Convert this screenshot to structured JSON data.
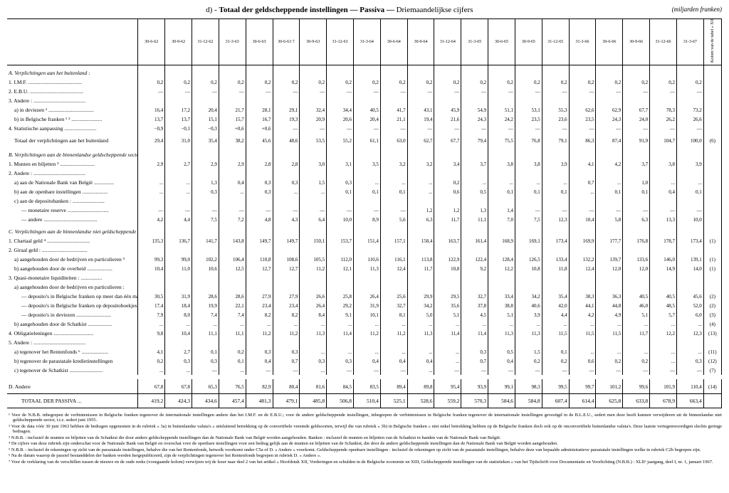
{
  "header": {
    "section_letter": "d)",
    "title_main": "Totaal der geldscheppende instellingen — Passiva —",
    "title_sub": "Driemaandelijkse cijfers",
    "unit": "(miljarden franken)"
  },
  "columns": [
    "30-6-62",
    "30-9-62",
    "31-12-62",
    "31-3-63",
    "30-6-63",
    "30-6-63 †",
    "30-9-63",
    "31-12-63",
    "31-3-64",
    "30-6-64",
    "30-9-64",
    "31-12-64",
    "31-3-65",
    "30-6-65",
    "30-9-65",
    "31-12-65",
    "31-3-66",
    "30-6-66",
    "30-9-66",
    "31-12-66",
    "31-3-67"
  ],
  "side_note": "Kolom van de tabel « XIII. d» geldschepp. instell. » waarin de rubriek begrepen is",
  "rows": [
    {
      "type": "section",
      "label": "A. Verplichtingen aan het buitenland :"
    },
    {
      "label": "1. I.M.F.",
      "indent": 0,
      "vals": [
        "0,2",
        "0,2",
        "0,2",
        "0,2",
        "0,2",
        "0,2",
        "0,2",
        "0,2",
        "0,2",
        "0,2",
        "0,2",
        "0,2",
        "0,2",
        "0,2",
        "0,2",
        "0,2",
        "0,2",
        "0,2",
        "0,2",
        "0,2",
        "0,2"
      ],
      "note": ""
    },
    {
      "label": "2. E.B.U.",
      "indent": 0,
      "vals": [
        "—",
        "—",
        "—",
        "—",
        "—",
        "—",
        "—",
        "—",
        "—",
        "—",
        "—",
        "—",
        "—",
        "—",
        "—",
        "—",
        "—",
        "—",
        "—",
        "—",
        "—"
      ],
      "note": ""
    },
    {
      "label": "3. Andere :",
      "indent": 0,
      "vals": [
        "",
        "",
        "",
        "",
        "",
        "",
        "",
        "",
        "",
        "",
        "",
        "",
        "",
        "",
        "",
        "",
        "",
        "",
        "",
        "",
        ""
      ],
      "note": ""
    },
    {
      "label": "a) in deviezen ²",
      "indent": 1,
      "vals": [
        "16,4",
        "17,2",
        "20,4",
        "21,7",
        "28,1",
        "29,1",
        "32,4",
        "34,4",
        "40,5",
        "41,7",
        "43,1",
        "45,9",
        "54,9",
        "51,1",
        "53,1",
        "55,3",
        "62,6",
        "62,9",
        "67,7",
        "78,3",
        "73,2"
      ],
      "note": ""
    },
    {
      "label": "b) in Belgische franken ¹ ²",
      "indent": 1,
      "vals": [
        "13,7",
        "13,7",
        "15,1",
        "15,7",
        "16,7",
        "19,3",
        "20,9",
        "20,6",
        "20,4",
        "21,1",
        "19,4",
        "21,6",
        "24,3",
        "24,2",
        "23,5",
        "23,6",
        "23,5",
        "24,3",
        "24,0",
        "26,2",
        "26,6"
      ],
      "note": ""
    },
    {
      "label": "4. Statistische aanpassing",
      "indent": 0,
      "vals": [
        "−0,9",
        "−0,1",
        "−0,3",
        "+0,6",
        "+0,6",
        "—",
        "—",
        "—",
        "—",
        "—",
        "—",
        "—",
        "—",
        "—",
        "—",
        "—",
        "—",
        "—",
        "—",
        "—",
        "—"
      ],
      "note": ""
    },
    {
      "label": "Totaal der verplichtingen aan het buitenland",
      "indent": 1,
      "vals": [
        "29,4",
        "31,0",
        "35,4",
        "38,2",
        "45,6",
        "48,6",
        "53,5",
        "55,2",
        "61,1",
        "63,0",
        "62,7",
        "67,7",
        "79,4",
        "75,5",
        "76,8",
        "79,1",
        "86,3",
        "87,4",
        "91,9",
        "104,7",
        "100,0"
      ],
      "note": "(6)",
      "class": "total-row"
    },
    {
      "type": "section",
      "label": "B. Verplichtingen aan de binnenlandse geldscheppende sector :"
    },
    {
      "label": "1. Munten en biljetten ³",
      "indent": 0,
      "vals": [
        "2,9",
        "2,7",
        "2,9",
        "2,9",
        "2,8",
        "2,8",
        "3,0",
        "3,1",
        "3,5",
        "3,2",
        "3,2",
        "3,4",
        "3,7",
        "3,8",
        "3,8",
        "3,9",
        "4,1",
        "4,2",
        "3,7",
        "3,8",
        "3,9"
      ],
      "note": ""
    },
    {
      "label": "2. Andere :",
      "indent": 0,
      "vals": [
        "",
        "",
        "",
        "",
        "",
        "",
        "",
        "",
        "",
        "",
        "",
        "",
        "",
        "",
        "",
        "",
        "",
        "",
        "",
        "",
        ""
      ],
      "note": ""
    },
    {
      "label": "a) aan de Nationale Bank van België",
      "indent": 1,
      "vals": [
        "...",
        "...",
        "1,3",
        "0,4",
        "0,3",
        "0,3",
        "1,5",
        "0,3",
        "...",
        "...",
        "...",
        "0,2",
        "...",
        "...",
        "...",
        "...",
        "0,7",
        "...",
        "1,0",
        "...",
        "..."
      ],
      "note": ""
    },
    {
      "label": "b) aan de openbare instellingen",
      "indent": 1,
      "vals": [
        "...",
        "...",
        "0,3",
        "...",
        "0,3",
        "...",
        "...",
        "0,1",
        "0,1",
        "0,1",
        "...",
        "0,6",
        "0,5",
        "0,1",
        "0,1",
        "0,1",
        "...",
        "0,1",
        "0,1",
        "0,4",
        "0,1"
      ],
      "note": ""
    },
    {
      "label": "c) aan de depositobanken :",
      "indent": 1,
      "vals": [
        "",
        "",
        "",
        "",
        "",
        "",
        "",
        "",
        "",
        "",
        "",
        "",
        "",
        "",
        "",
        "",
        "",
        "",
        "",
        "",
        ""
      ],
      "note": ""
    },
    {
      "label": "— monetaire reserve",
      "indent": 2,
      "vals": [
        "—",
        "—",
        "—",
        "—",
        "—",
        "—",
        "—",
        "—",
        "—",
        "—",
        "1,2",
        "1,2",
        "1,3",
        "1,4",
        "—",
        "—",
        "—",
        "—",
        "—",
        "—",
        "—"
      ],
      "note": ""
    },
    {
      "label": "— andere",
      "indent": 2,
      "vals": [
        "4,2",
        "4,4",
        "7,5",
        "7,2",
        "4,8",
        "4,3",
        "6,4",
        "10,0",
        "8,9",
        "5,6",
        "6,3",
        "11,7",
        "11,1",
        "7,0",
        "7,5",
        "12,3",
        "10,4",
        "5,8",
        "6,3",
        "13,3",
        "10,0"
      ],
      "note": ""
    },
    {
      "type": "section",
      "label": "C. Verplichtingen aan de binnenlandse niet geldscheppende sector :"
    },
    {
      "label": "1. Chartaal geld ⁴",
      "indent": 0,
      "vals": [
        "135,3",
        "136,7",
        "141,7",
        "143,8",
        "149,7",
        "149,7",
        "150,1",
        "153,7",
        "151,4",
        "157,1",
        "158,4",
        "163,7",
        "161,4",
        "168,9",
        "169,1",
        "173,4",
        "169,9",
        "177,7",
        "176,8",
        "178,7",
        "173,4"
      ],
      "note": "(1)"
    },
    {
      "label": "2. Giraal geld :",
      "indent": 0,
      "vals": [
        "",
        "",
        "",
        "",
        "",
        "",
        "",
        "",
        "",
        "",
        "",
        "",
        "",
        "",
        "",
        "",
        "",
        "",
        "",
        "",
        ""
      ],
      "note": ""
    },
    {
      "label": "a) aangehouden door de bedrijven en particulieren ⁵",
      "indent": 1,
      "vals": [
        "99,3",
        "99,0",
        "102,2",
        "106,4",
        "110,8",
        "108,6",
        "105,5",
        "112,0",
        "110,6",
        "116,1",
        "113,8",
        "122,9",
        "122,4",
        "128,4",
        "126,5",
        "133,4",
        "132,2",
        "139,7",
        "133,6",
        "146,0",
        "139,1"
      ],
      "note": "(1)"
    },
    {
      "label": "b) aangehouden door de overheid",
      "indent": 1,
      "vals": [
        "10,4",
        "11,0",
        "10,6",
        "12,5",
        "12,7",
        "12,7",
        "11,2",
        "12,1",
        "11,3",
        "12,4",
        "11,7",
        "10,8",
        "9,2",
        "12,2",
        "10,8",
        "11,8",
        "12,4",
        "12,0",
        "12,0",
        "14,9",
        "14,0"
      ],
      "note": "(1)"
    },
    {
      "label": "3. Quasi-monetaire liquiditeiten :",
      "indent": 0,
      "vals": [
        "",
        "",
        "",
        "",
        "",
        "",
        "",
        "",
        "",
        "",
        "",
        "",
        "",
        "",
        "",
        "",
        "",
        "",
        "",
        "",
        ""
      ],
      "note": ""
    },
    {
      "label": "a) aangehouden door de bedrijven en particulieren :",
      "indent": 1,
      "vals": [
        "",
        "",
        "",
        "",
        "",
        "",
        "",
        "",
        "",
        "",
        "",
        "",
        "",
        "",
        "",
        "",
        "",
        "",
        "",
        "",
        ""
      ],
      "note": ""
    },
    {
      "label": "— deposito's in Belgische franken op meer dan één maand",
      "indent": 2,
      "vals": [
        "30,5",
        "31,9",
        "28,6",
        "28,6",
        "27,9",
        "27,9",
        "26,6",
        "25,8",
        "26,4",
        "25,6",
        "29,9",
        "29,5",
        "32,7",
        "33,4",
        "34,2",
        "35,4",
        "38,3",
        "36,3",
        "40,5",
        "40,5",
        "45,6"
      ],
      "note": "(2)"
    },
    {
      "label": "— deposito's in Belgische franken op depositoboekjes",
      "indent": 2,
      "vals": [
        "17,4",
        "18,4",
        "19,9",
        "22,1",
        "23,4",
        "23,4",
        "26,4",
        "29,2",
        "31,9",
        "32,7",
        "34,2",
        "35,6",
        "37,8",
        "38,8",
        "40,6",
        "42,0",
        "44,1",
        "44,8",
        "46,0",
        "48,5",
        "52,0"
      ],
      "note": "(2)"
    },
    {
      "label": "— deposito's in deviezen",
      "indent": 2,
      "vals": [
        "7,9",
        "8,0",
        "7,4",
        "7,4",
        "8,2",
        "8,2",
        "8,4",
        "9,1",
        "10,1",
        "8,1",
        "5,0",
        "5,1",
        "4,5",
        "5,1",
        "3,9",
        "4,4",
        "4,2",
        "4,9",
        "5,1",
        "5,7",
        "6,0"
      ],
      "note": "(3)"
    },
    {
      "label": "b) aangehouden door de Schatkist",
      "indent": 1,
      "vals": [
        "...",
        "...",
        "...",
        "...",
        "...",
        "...",
        "...",
        "...",
        "...",
        "...",
        "...",
        "...",
        "...",
        "...",
        "...",
        "...",
        "...",
        "...",
        "...",
        "...",
        "..."
      ],
      "note": "(4)"
    },
    {
      "label": "4. Obligatieleningen",
      "indent": 0,
      "vals": [
        "9,8",
        "10,4",
        "11,1",
        "11,1",
        "11,2",
        "11,2",
        "11,3",
        "11,4",
        "11,2",
        "11,2",
        "11,3",
        "11,4",
        "11,4",
        "11,3",
        "11,3",
        "11,5",
        "11,5",
        "11,5",
        "11,7",
        "12,2",
        "12,3"
      ],
      "note": "(13)"
    },
    {
      "label": "5. Andere :",
      "indent": 0,
      "vals": [
        "",
        "",
        "",
        "",
        "",
        "",
        "",
        "",
        "",
        "",
        "",
        "",
        "",
        "",
        "",
        "",
        "",
        "",
        "",
        "",
        ""
      ],
      "note": ""
    },
    {
      "label": "a) tegenover het Rentenfonds ⁶",
      "indent": 1,
      "vals": [
        "4,1",
        "2,7",
        "0,1",
        "0,2",
        "0,3",
        "0,3",
        "...",
        "...",
        "...",
        "...",
        "...",
        "...",
        "0,3",
        "0,5",
        "1,5",
        "0,1",
        "...",
        "...",
        "...",
        "...",
        "..."
      ],
      "note": "(11)"
    },
    {
      "label": "b) tegenover de parastatale kredietinstellingen",
      "indent": 1,
      "vals": [
        "0,2",
        "0,3",
        "0,3",
        "0,1",
        "0,4",
        "0,7",
        "0,3",
        "0,3",
        "0,4",
        "0,4",
        "0,4",
        "...",
        "0,7",
        "0,4",
        "0,2",
        "0,2",
        "0,6",
        "0,2",
        "0,2",
        "...",
        "0,3"
      ],
      "note": "(12)"
    },
    {
      "label": "c) tegenover de Schatkist",
      "indent": 1,
      "vals": [
        "...",
        "...",
        "—",
        "...",
        "—",
        "—",
        "...",
        "—",
        "—",
        "—",
        "...",
        "—",
        "—",
        "—",
        "—",
        "—",
        "—",
        "—",
        "—",
        "—",
        "—"
      ],
      "note": "(7)"
    },
    {
      "type": "spacer"
    },
    {
      "label": "D. Andere",
      "indent": 0,
      "vals": [
        "67,8",
        "67,8",
        "65,3",
        "76,5",
        "82,9",
        "80,4",
        "81,6",
        "84,5",
        "83,5",
        "89,4",
        "89,8",
        "95,4",
        "93,9",
        "99,1",
        "98,3",
        "99,5",
        "99,7",
        "101,2",
        "99,6",
        "101,9",
        "110,4"
      ],
      "note": "(14)",
      "class": "total-row"
    },
    {
      "label": "TOTAAL DER PASSIVA ...",
      "indent": 2,
      "vals": [
        "419,2",
        "424,3",
        "434,6",
        "457,4",
        "481,3",
        "479,1",
        "485,8",
        "506,8",
        "510,4",
        "525,1",
        "528,6",
        "559,2",
        "570,3",
        "584,6",
        "584,8",
        "607,4",
        "614,4",
        "625,8",
        "633,8",
        "678,9",
        "663,4"
      ],
      "note": "",
      "class": "grand-total"
    }
  ],
  "footnotes": [
    "¹ Voor de N.B.B. inbegrepen de verbintenissen in Belgische franken tegenover de internationale instellingen andere dan het I.M.F. en de E.B.U.; voor de andere geldscheppende instellingen, inbegrepen de verbintenissen in Belgische franken tegenover de internationale instellingen gevestigd in de B.L.E.U., sedert men deze heeft kunnen verwijderen uit de binnenlandse niet geldscheppende sector, t.t.z. sedert juni 1955.",
    "² Voor de data vóór 30 juni 1963 hebben de bedragen opgenomen in de rubriek « 3a) in buitenlandse valuta's » uitsluitend betrekking op de convertibele vreemde geldsoorten, terwijl die van rubriek « 3b) in Belgische franken » niet enkel betrekking hebben op de Belgische franken doch ook op de onconvertibele buitenlandse valuta's. Deze laatste vertegenwoordigen slechts geringe bedragen.",
    "³ N.B.B. : inclusief de munten en biljetten van de Schatkist die door andere geldscheppende instellingen dan de Nationale Bank van België worden aangehouden. Banken : inclusief de munten en biljetten van de Schatkist in handen van de Nationale Bank van België.",
    "⁴ De cijfers van deze rubriek zijn onderschat voor de Nationale Bank van België en overschat voor de openbare instellingen voor een bedrag gelijk aan de munten en biljetten van de Schatkist, die door de andere geldscheppende instellingen dan de Nationale Bank van België worden aangehouden.",
    "⁵ N.B.B. : inclusief de rekeningen op zicht van de parastatale instellingen, behalve die van het Rentenfonds, hetwelk voorkomt onder C5a of D. « Andere » voorkomt. Geldscheppende openbare instellingen : inclusief de rekeningen op zicht van de parastatale instellingen, behalve deze van bepaalde administratieve parastatale instellingen welke in rubriek C2b begrepen zijn.",
    "⁶ Na de datum waarop de passief bestanddelen der banken werden hergepubliceerd, zijn de verplichtingen tegenover het Rentenfonds begrepen in rubriek D. « Andere ».",
    "⁷ Voor de verklaring van de verschillen tussen de nieuwe en de oude reeks (voorgaande kolom) verwijzen wij de lezer naar deel 2 van het artikel « Hoofdstuk XII, Vorderingen en schulden in de Belgische economie en XIII, Geldscheppende instellingen van de statistieken » van het Tijdschrift voor Documentatie en Voorlichting (N.B.B.) : XLIIᵉ jaargang, deel I, nr. 1, januari 1967."
  ]
}
